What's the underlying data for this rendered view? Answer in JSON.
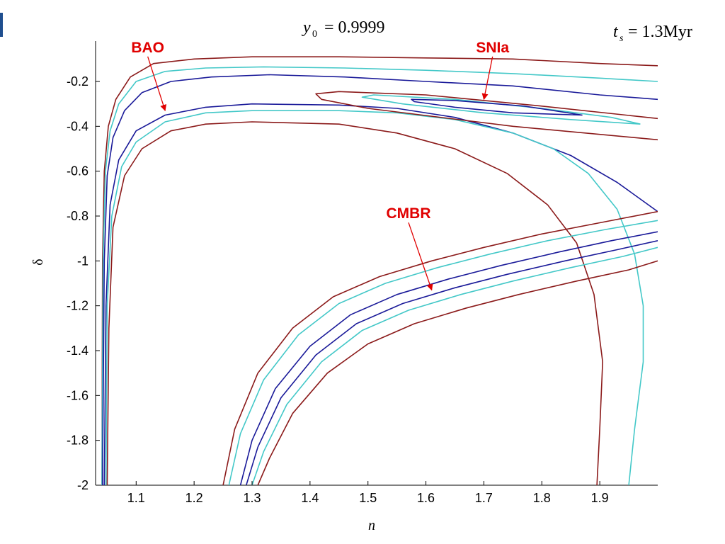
{
  "chart_data": {
    "type": "line",
    "title": "",
    "xlabel": "n",
    "ylabel": "δ",
    "xlim": [
      1.03,
      2.0
    ],
    "ylim": [
      -2.0,
      -0.02
    ],
    "x_ticks": [
      1.1,
      1.2,
      1.3,
      1.4,
      1.5,
      1.6,
      1.7,
      1.8,
      1.9
    ],
    "x_tick_labels": [
      "1.1",
      "1.2",
      "1.3",
      "1.4",
      "1.5",
      "1.6",
      "1.7",
      "1.8",
      "1.9"
    ],
    "y_ticks": [
      -0.2,
      -0.4,
      -0.6,
      -0.8,
      -1,
      -1.2,
      -1.4,
      -1.6,
      -1.8,
      -2
    ],
    "y_tick_labels": [
      "-0.2",
      "-0.4",
      "-0.6",
      "-0.8",
      "-1",
      "-1.2",
      "-1.4",
      "-1.6",
      "-1.8",
      "-2"
    ],
    "grid": false,
    "params": {
      "y0_symbol": "y",
      "y0_sub": "0",
      "y0_value": "= 0.9999",
      "ts_symbol": "t",
      "ts_sub": "s",
      "ts_value": "= 1.3Myr"
    },
    "annotations": [
      {
        "text": "BAO",
        "label_at": [
          1.12,
          -0.07
        ],
        "arrow_to": [
          1.15,
          -0.33
        ]
      },
      {
        "text": "SNIa",
        "label_at": [
          1.715,
          -0.07
        ],
        "arrow_to": [
          1.7,
          -0.28
        ]
      },
      {
        "text": "CMBR",
        "label_at": [
          1.57,
          -0.81
        ],
        "arrow_to": [
          1.61,
          -1.13
        ]
      }
    ],
    "series": [
      {
        "group": "BAO",
        "color": "#8b1a1a",
        "x": [
          1.041,
          1.042,
          1.045,
          1.052,
          1.065,
          1.09,
          1.13,
          1.2,
          1.3,
          1.45,
          1.6,
          1.75,
          1.9,
          2.0
        ],
        "y": [
          -2.0,
          -1.0,
          -0.6,
          -0.4,
          -0.28,
          -0.18,
          -0.12,
          -0.1,
          -0.09,
          -0.09,
          -0.095,
          -0.1,
          -0.12,
          -0.13
        ]
      },
      {
        "group": "BAO",
        "color": "#43c8c8",
        "x": [
          1.041,
          1.043,
          1.047,
          1.055,
          1.07,
          1.1,
          1.15,
          1.22,
          1.32,
          1.46,
          1.6,
          1.75,
          1.9,
          2.0
        ],
        "y": [
          -2.0,
          -1.0,
          -0.6,
          -0.42,
          -0.3,
          -0.2,
          -0.155,
          -0.14,
          -0.135,
          -0.14,
          -0.15,
          -0.165,
          -0.185,
          -0.2
        ]
      },
      {
        "group": "BAO",
        "color": "#1a1a99",
        "x": [
          1.042,
          1.045,
          1.05,
          1.06,
          1.08,
          1.11,
          1.16,
          1.23,
          1.33,
          1.46,
          1.6,
          1.75,
          1.9,
          2.0
        ],
        "y": [
          -2.0,
          -1.0,
          -0.62,
          -0.45,
          -0.33,
          -0.25,
          -0.2,
          -0.18,
          -0.17,
          -0.18,
          -0.2,
          -0.22,
          -0.26,
          -0.28
        ]
      },
      {
        "group": "BAO",
        "color": "#1a1a99",
        "x": [
          1.045,
          1.048,
          1.055,
          1.07,
          1.1,
          1.15,
          1.22,
          1.3,
          1.45,
          1.55,
          1.65,
          1.75,
          1.85,
          1.93,
          2.0
        ],
        "y": [
          -2.0,
          -1.2,
          -0.75,
          -0.55,
          -0.42,
          -0.35,
          -0.315,
          -0.3,
          -0.305,
          -0.32,
          -0.36,
          -0.43,
          -0.53,
          -0.65,
          -0.78
        ]
      },
      {
        "group": "BAO",
        "color": "#43c8c8",
        "x": [
          1.048,
          1.05,
          1.058,
          1.075,
          1.1,
          1.15,
          1.22,
          1.3,
          1.45,
          1.55,
          1.65,
          1.75,
          1.82,
          1.88,
          1.93,
          1.96,
          1.975,
          1.975,
          1.96,
          1.95
        ],
        "y": [
          -2.0,
          -1.2,
          -0.8,
          -0.58,
          -0.47,
          -0.38,
          -0.34,
          -0.33,
          -0.33,
          -0.34,
          -0.37,
          -0.43,
          -0.5,
          -0.61,
          -0.77,
          -0.97,
          -1.2,
          -1.45,
          -1.75,
          -2.0
        ]
      },
      {
        "group": "BAO",
        "color": "#8b1a1a",
        "x": [
          1.05,
          1.053,
          1.06,
          1.08,
          1.11,
          1.16,
          1.22,
          1.3,
          1.45,
          1.55,
          1.65,
          1.74,
          1.81,
          1.86,
          1.89,
          1.905,
          1.9,
          1.895
        ],
        "y": [
          -2.0,
          -1.3,
          -0.85,
          -0.62,
          -0.5,
          -0.42,
          -0.39,
          -0.38,
          -0.39,
          -0.43,
          -0.5,
          -0.61,
          -0.75,
          -0.92,
          -1.15,
          -1.45,
          -1.75,
          -2.0
        ]
      },
      {
        "group": "SNIa",
        "color": "#8b1a1a",
        "x": [
          2.0,
          1.75,
          1.5,
          1.42,
          1.41,
          1.45,
          1.6,
          1.8,
          2.0
        ],
        "y": [
          -0.46,
          -0.4,
          -0.32,
          -0.28,
          -0.255,
          -0.245,
          -0.26,
          -0.31,
          -0.365
        ]
      },
      {
        "group": "SNIa",
        "color": "#43c8c8",
        "x": [
          1.97,
          1.85,
          1.7,
          1.56,
          1.49,
          1.51,
          1.65,
          1.8,
          1.92,
          1.97
        ],
        "y": [
          -0.39,
          -0.37,
          -0.34,
          -0.3,
          -0.27,
          -0.26,
          -0.28,
          -0.32,
          -0.36,
          -0.39
        ]
      },
      {
        "group": "SNIa",
        "color": "#1a1a99",
        "x": [
          1.87,
          1.75,
          1.65,
          1.58,
          1.575,
          1.65,
          1.77,
          1.87
        ],
        "y": [
          -0.35,
          -0.34,
          -0.315,
          -0.29,
          -0.28,
          -0.285,
          -0.31,
          -0.35
        ]
      },
      {
        "group": "CMBR",
        "color": "#8b1a1a",
        "x": [
          1.25,
          1.27,
          1.31,
          1.37,
          1.44,
          1.52,
          1.61,
          1.7,
          1.8,
          1.9,
          2.0
        ],
        "y": [
          -2.0,
          -1.75,
          -1.5,
          -1.3,
          -1.16,
          -1.07,
          -1.0,
          -0.94,
          -0.88,
          -0.83,
          -0.78
        ]
      },
      {
        "group": "CMBR",
        "color": "#43c8c8",
        "x": [
          1.26,
          1.28,
          1.32,
          1.38,
          1.45,
          1.53,
          1.62,
          1.71,
          1.81,
          1.91,
          2.0
        ],
        "y": [
          -2.0,
          -1.77,
          -1.53,
          -1.33,
          -1.19,
          -1.1,
          -1.03,
          -0.97,
          -0.91,
          -0.86,
          -0.82
        ]
      },
      {
        "group": "CMBR",
        "color": "#1a1a99",
        "x": [
          1.28,
          1.3,
          1.34,
          1.4,
          1.47,
          1.55,
          1.64,
          1.73,
          1.83,
          1.92,
          2.0
        ],
        "y": [
          -2.0,
          -1.8,
          -1.57,
          -1.38,
          -1.24,
          -1.15,
          -1.08,
          -1.02,
          -0.96,
          -0.91,
          -0.87
        ]
      },
      {
        "group": "CMBR",
        "color": "#1a1a99",
        "x": [
          1.29,
          1.31,
          1.35,
          1.41,
          1.48,
          1.56,
          1.65,
          1.74,
          1.84,
          1.93,
          2.0
        ],
        "y": [
          -2.0,
          -1.83,
          -1.61,
          -1.42,
          -1.28,
          -1.19,
          -1.12,
          -1.06,
          -1.0,
          -0.95,
          -0.91
        ]
      },
      {
        "group": "CMBR",
        "color": "#43c8c8",
        "x": [
          1.3,
          1.32,
          1.36,
          1.42,
          1.49,
          1.57,
          1.66,
          1.75,
          1.85,
          1.94,
          2.0
        ],
        "y": [
          -2.0,
          -1.85,
          -1.64,
          -1.45,
          -1.31,
          -1.22,
          -1.15,
          -1.09,
          -1.03,
          -0.98,
          -0.94
        ]
      },
      {
        "group": "CMBR",
        "color": "#8b1a1a",
        "x": [
          1.31,
          1.33,
          1.37,
          1.43,
          1.5,
          1.58,
          1.67,
          1.76,
          1.86,
          1.95,
          2.0
        ],
        "y": [
          -2.0,
          -1.88,
          -1.68,
          -1.5,
          -1.37,
          -1.28,
          -1.21,
          -1.15,
          -1.09,
          -1.04,
          -1.0
        ]
      }
    ]
  }
}
